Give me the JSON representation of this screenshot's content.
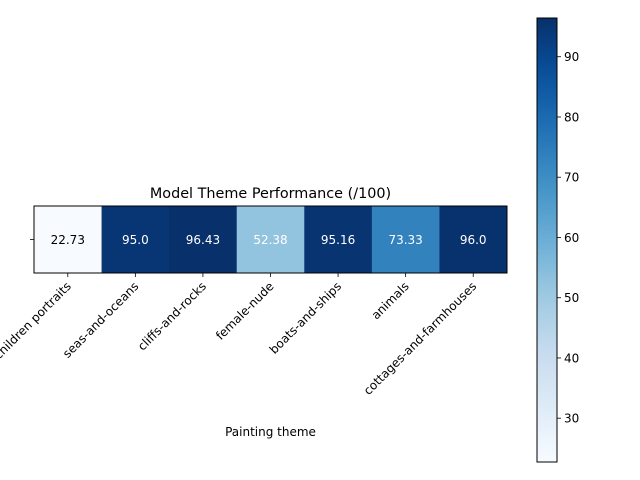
{
  "chart_data": {
    "type": "heatmap",
    "title": "Model Theme Performance (/100)",
    "xlabel": "Painting theme",
    "ylabel": "",
    "row_labels": [
      ""
    ],
    "categories": [
      "children portraits",
      "seas-and-oceans",
      "cliffs-and-rocks",
      "female-nude",
      "boats-and-ships",
      "animals",
      "cottages-and-farmhouses"
    ],
    "values": [
      22.73,
      95.0,
      96.43,
      52.38,
      95.16,
      73.33,
      96.0
    ],
    "value_labels": [
      "22.73",
      "95.0",
      "96.43",
      "52.38",
      "95.16",
      "73.33",
      "96.0"
    ],
    "colormap": "Blues",
    "color_range": [
      22.73,
      96.43
    ],
    "colorbar": {
      "ticks": [
        30,
        40,
        50,
        60,
        70,
        80,
        90
      ],
      "tick_labels": [
        "30",
        "40",
        "50",
        "60",
        "70",
        "80",
        "90"
      ]
    },
    "grid": false
  }
}
